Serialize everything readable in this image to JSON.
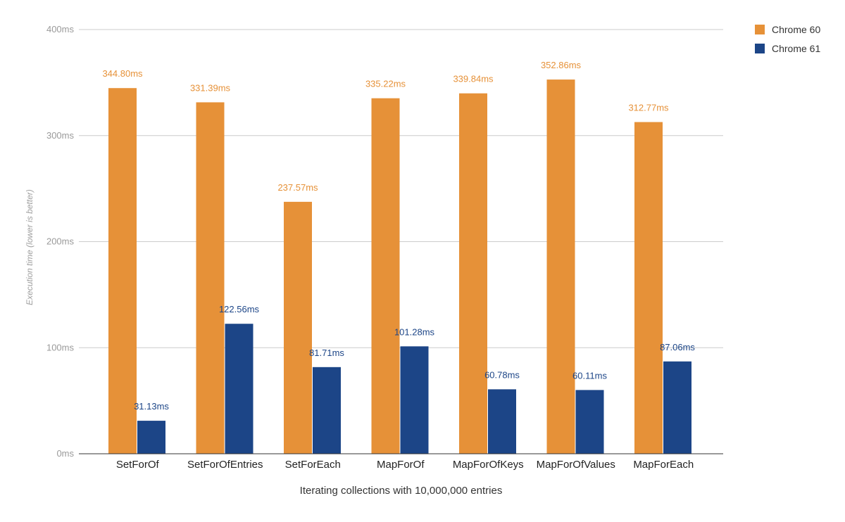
{
  "chart_data": {
    "type": "bar",
    "title": "",
    "xlabel": "Iterating collections with 10,000,000 entries",
    "ylabel": "Execution time (lower is better)",
    "ylim": [
      0,
      400
    ],
    "yticks": [
      0,
      100,
      200,
      300,
      400
    ],
    "ytick_labels": [
      "0ms",
      "100ms",
      "200ms",
      "300ms",
      "400ms"
    ],
    "grid": true,
    "legend_position": "top-right",
    "categories": [
      "SetForOf",
      "SetForOfEntries",
      "SetForEach",
      "MapForOf",
      "MapForOfKeys",
      "MapForOfValues",
      "MapForEach"
    ],
    "series": [
      {
        "name": "Chrome 60",
        "color": "#E69138",
        "label_color": "#E69138",
        "values": [
          344.8,
          331.39,
          237.57,
          335.22,
          339.84,
          352.86,
          312.77
        ],
        "labels": [
          "344.80ms",
          "331.39ms",
          "237.57ms",
          "335.22ms",
          "339.84ms",
          "352.86ms",
          "312.77ms"
        ]
      },
      {
        "name": "Chrome 61",
        "color": "#1C4587",
        "label_color": "#1C4587",
        "values": [
          31.13,
          122.56,
          81.71,
          101.28,
          60.78,
          60.11,
          87.06
        ],
        "labels": [
          "31.13ms",
          "122.56ms",
          "81.71ms",
          "101.28ms",
          "60.78ms",
          "60.11ms",
          "87.06ms"
        ]
      }
    ]
  }
}
